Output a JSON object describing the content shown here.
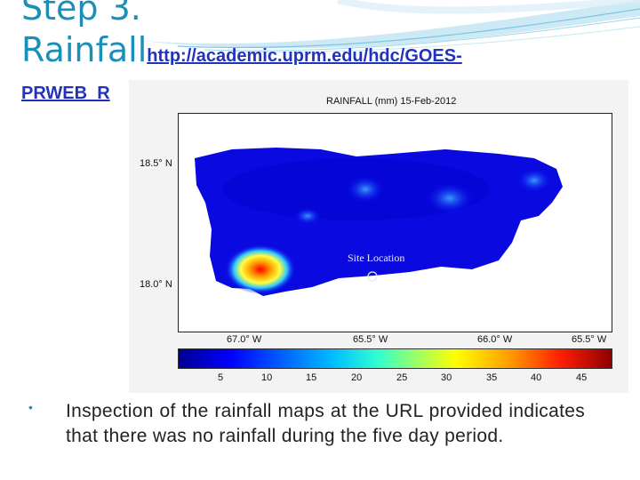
{
  "slide": {
    "title_main": "Step 3.",
    "title_second": "Rainfall",
    "link_part1": "http://academic.uprm.edu/hdc/GOES-",
    "link_part2": "PRWEB_R",
    "bullet_text": "Inspection of the rainfall maps at the URL provided indicates that there was no rainfall during the five day period.",
    "accent_color": "#1a8fb8",
    "link_color": "#2233bb"
  },
  "map": {
    "title": "RAINFALL (mm) 15-Feb-2012",
    "site_label": "Site Location",
    "y_ticks": [
      "18.5° N",
      "18.0° N"
    ],
    "x_ticks": [
      "67.0° W",
      "65.5° W",
      "66.0° W",
      "65.5° W"
    ],
    "colorbar_ticks": [
      "5",
      "10",
      "15",
      "20",
      "25",
      "30",
      "35",
      "40",
      "45"
    ]
  }
}
